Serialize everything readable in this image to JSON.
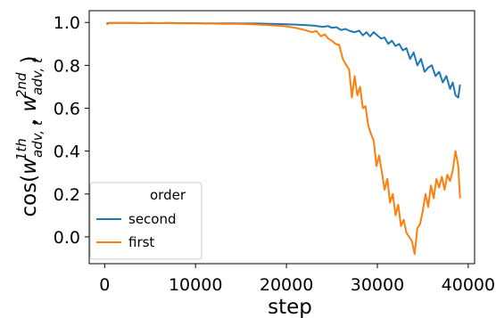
{
  "chart_data": {
    "type": "line",
    "xlabel": "step",
    "ylabel": "cos(w_{adv,t}^{1th}, w_{adv,t}^{2nd})",
    "ylabel_parts": {
      "prefix": "cos(",
      "w1": "w",
      "w1_sub": "adv, t",
      "w1_sup": "1th",
      "sep": ", ",
      "w2": "w",
      "w2_sub": "adv, t",
      "w2_sup": "2nd",
      "suffix": ")"
    },
    "xlim": [
      -1700,
      40700
    ],
    "ylim": [
      -0.125,
      1.055
    ],
    "xticks": [
      0,
      10000,
      20000,
      30000,
      40000
    ],
    "xtick_labels": [
      "0",
      "10000",
      "20000",
      "30000",
      "40000"
    ],
    "yticks": [
      0.0,
      0.2,
      0.4,
      0.6,
      0.8,
      1.0
    ],
    "ytick_labels": [
      "0.0",
      "0.2",
      "0.4",
      "0.6",
      "0.8",
      "1.0"
    ],
    "grid": false,
    "legend": {
      "title": "order",
      "placement": "lower-left"
    },
    "series": [
      {
        "name": "second",
        "color": "#1f77b4",
        "points": [
          [
            200,
            0.995
          ],
          [
            500,
            0.998
          ],
          [
            1000,
            0.998
          ],
          [
            2000,
            0.998
          ],
          [
            3000,
            0.998
          ],
          [
            4000,
            0.997
          ],
          [
            5000,
            0.998
          ],
          [
            6000,
            0.997
          ],
          [
            7000,
            0.998
          ],
          [
            8000,
            0.997
          ],
          [
            9000,
            0.997
          ],
          [
            10000,
            0.997
          ],
          [
            11000,
            0.996
          ],
          [
            12000,
            0.996
          ],
          [
            13000,
            0.996
          ],
          [
            14000,
            0.996
          ],
          [
            15000,
            0.995
          ],
          [
            16000,
            0.995
          ],
          [
            17000,
            0.995
          ],
          [
            18000,
            0.994
          ],
          [
            19000,
            0.993
          ],
          [
            20000,
            0.992
          ],
          [
            21000,
            0.99
          ],
          [
            22000,
            0.988
          ],
          [
            23000,
            0.985
          ],
          [
            24000,
            0.98
          ],
          [
            24600,
            0.983
          ],
          [
            25000,
            0.975
          ],
          [
            25500,
            0.978
          ],
          [
            26000,
            0.965
          ],
          [
            26500,
            0.97
          ],
          [
            27000,
            0.96
          ],
          [
            27500,
            0.955
          ],
          [
            28000,
            0.962
          ],
          [
            28400,
            0.94
          ],
          [
            28800,
            0.955
          ],
          [
            29200,
            0.935
          ],
          [
            29600,
            0.955
          ],
          [
            30000,
            0.94
          ],
          [
            30400,
            0.925
          ],
          [
            30800,
            0.93
          ],
          [
            31200,
            0.9
          ],
          [
            31600,
            0.915
          ],
          [
            32000,
            0.89
          ],
          [
            32400,
            0.9
          ],
          [
            32800,
            0.87
          ],
          [
            33200,
            0.88
          ],
          [
            33600,
            0.83
          ],
          [
            34000,
            0.86
          ],
          [
            34400,
            0.8
          ],
          [
            34800,
            0.83
          ],
          [
            35200,
            0.77
          ],
          [
            35600,
            0.79
          ],
          [
            36000,
            0.8
          ],
          [
            36400,
            0.75
          ],
          [
            36800,
            0.77
          ],
          [
            37200,
            0.72
          ],
          [
            37600,
            0.75
          ],
          [
            38000,
            0.69
          ],
          [
            38300,
            0.72
          ],
          [
            38600,
            0.66
          ],
          [
            38900,
            0.65
          ],
          [
            39100,
            0.71
          ]
        ]
      },
      {
        "name": "first",
        "color": "#ff7f0e",
        "points": [
          [
            200,
            0.99
          ],
          [
            500,
            0.997
          ],
          [
            1000,
            0.998
          ],
          [
            2000,
            0.998
          ],
          [
            3000,
            0.998
          ],
          [
            4000,
            0.997
          ],
          [
            5000,
            0.997
          ],
          [
            6000,
            0.997
          ],
          [
            7000,
            0.997
          ],
          [
            8000,
            0.996
          ],
          [
            9000,
            0.996
          ],
          [
            10000,
            0.996
          ],
          [
            11000,
            0.995
          ],
          [
            12000,
            0.995
          ],
          [
            13000,
            0.994
          ],
          [
            14000,
            0.994
          ],
          [
            15000,
            0.993
          ],
          [
            16000,
            0.992
          ],
          [
            17000,
            0.99
          ],
          [
            18000,
            0.988
          ],
          [
            19000,
            0.985
          ],
          [
            20000,
            0.982
          ],
          [
            21000,
            0.975
          ],
          [
            22000,
            0.965
          ],
          [
            22800,
            0.955
          ],
          [
            23300,
            0.96
          ],
          [
            23800,
            0.935
          ],
          [
            24200,
            0.945
          ],
          [
            24600,
            0.925
          ],
          [
            25000,
            0.915
          ],
          [
            25400,
            0.9
          ],
          [
            25800,
            0.895
          ],
          [
            26200,
            0.83
          ],
          [
            26600,
            0.8
          ],
          [
            26900,
            0.78
          ],
          [
            27200,
            0.65
          ],
          [
            27500,
            0.75
          ],
          [
            27800,
            0.66
          ],
          [
            28100,
            0.7
          ],
          [
            28400,
            0.6
          ],
          [
            28700,
            0.61
          ],
          [
            29000,
            0.52
          ],
          [
            29300,
            0.48
          ],
          [
            29600,
            0.45
          ],
          [
            29900,
            0.33
          ],
          [
            30200,
            0.38
          ],
          [
            30500,
            0.3
          ],
          [
            30800,
            0.22
          ],
          [
            31100,
            0.27
          ],
          [
            31400,
            0.16
          ],
          [
            31700,
            0.2
          ],
          [
            32000,
            0.1
          ],
          [
            32300,
            0.15
          ],
          [
            32600,
            0.05
          ],
          [
            32900,
            0.08
          ],
          [
            33200,
            0.02
          ],
          [
            33500,
            0.0
          ],
          [
            33800,
            -0.02
          ],
          [
            34100,
            -0.08
          ],
          [
            34400,
            0.04
          ],
          [
            34700,
            0.06
          ],
          [
            35000,
            0.12
          ],
          [
            35300,
            0.2
          ],
          [
            35600,
            0.14
          ],
          [
            35900,
            0.24
          ],
          [
            36200,
            0.18
          ],
          [
            36500,
            0.27
          ],
          [
            36800,
            0.23
          ],
          [
            37100,
            0.28
          ],
          [
            37400,
            0.22
          ],
          [
            37700,
            0.29
          ],
          [
            38000,
            0.26
          ],
          [
            38300,
            0.31
          ],
          [
            38600,
            0.4
          ],
          [
            38900,
            0.33
          ],
          [
            39100,
            0.18
          ]
        ]
      }
    ]
  }
}
